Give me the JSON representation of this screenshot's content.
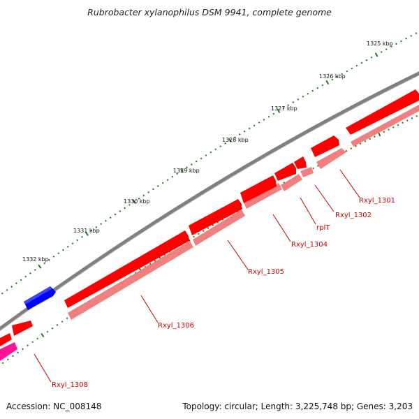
{
  "title": "Rubrobacter xylanophilus DSM 9941, complete genome",
  "footer": {
    "accession": "Accession: NC_008148",
    "summary": "Topology: circular; Length: 3,225,748 bp; Genes: 3,203"
  },
  "colors": {
    "backbone": "#808080",
    "cds_forward": "#ff0000",
    "cds_forward_shadow": "#f08080",
    "cds_reverse": "#0000ff",
    "rna": "#ff1493",
    "tick": "#1a7a1a",
    "label": "#cc0000"
  },
  "kbp_ticks": [
    {
      "kbp": 1325,
      "label": "1325 kbp"
    },
    {
      "kbp": 1326,
      "label": "1326 kbp"
    },
    {
      "kbp": 1327,
      "label": "1327 kbp"
    },
    {
      "kbp": 1328,
      "label": "1328 kbp"
    },
    {
      "kbp": 1329,
      "label": "1329 kbp"
    },
    {
      "kbp": 1330,
      "label": "1330 kbp"
    },
    {
      "kbp": 1331,
      "label": "1331 kbp"
    },
    {
      "kbp": 1332,
      "label": "1332 kbp"
    }
  ],
  "genes": [
    {
      "label": "Rxyl_1301",
      "strand": "+"
    },
    {
      "label": "Rxyl_1302",
      "strand": "+"
    },
    {
      "label": "rplT",
      "strand": "+"
    },
    {
      "label": "Rxyl_1304",
      "strand": "+"
    },
    {
      "label": "Rxyl_1305",
      "strand": "+"
    },
    {
      "label": "Rxyl_1306",
      "strand": "+"
    },
    {
      "label": "Rxyl_1308",
      "strand": "+"
    }
  ]
}
